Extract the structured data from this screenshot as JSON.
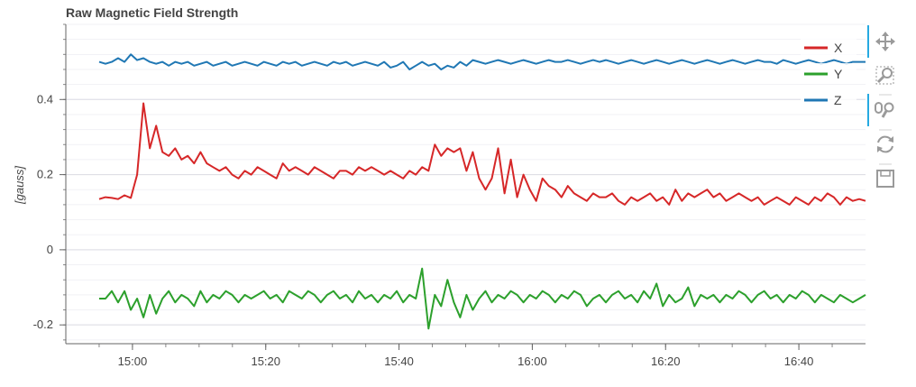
{
  "chart_data": {
    "type": "line",
    "title": "Raw Magnetic Field Strength",
    "xlabel": "",
    "ylabel": "[gauss]",
    "x_start": "14:55",
    "x_end": "16:50",
    "xlim": [
      "14:50",
      "16:50"
    ],
    "ylim": [
      -0.25,
      0.6
    ],
    "x_tick_labels": [
      "15:00",
      "15:20",
      "15:40",
      "16:00",
      "16:20",
      "16:40"
    ],
    "y_ticks": [
      -0.2,
      0,
      0.2,
      0.4
    ],
    "y_tick_labels": [
      "-0.2",
      "0",
      "0.2",
      "0.4"
    ],
    "grid": true,
    "legend_position": "top-right",
    "series": [
      {
        "name": "X",
        "color": "#d62728",
        "values": [
          0.135,
          0.14,
          0.138,
          0.135,
          0.145,
          0.138,
          0.2,
          0.39,
          0.27,
          0.33,
          0.26,
          0.25,
          0.27,
          0.24,
          0.25,
          0.23,
          0.26,
          0.23,
          0.22,
          0.21,
          0.22,
          0.2,
          0.19,
          0.21,
          0.2,
          0.22,
          0.21,
          0.2,
          0.19,
          0.23,
          0.21,
          0.22,
          0.21,
          0.2,
          0.22,
          0.21,
          0.2,
          0.19,
          0.21,
          0.21,
          0.2,
          0.22,
          0.21,
          0.22,
          0.21,
          0.2,
          0.21,
          0.2,
          0.19,
          0.21,
          0.2,
          0.22,
          0.21,
          0.28,
          0.25,
          0.27,
          0.26,
          0.27,
          0.21,
          0.26,
          0.19,
          0.16,
          0.19,
          0.27,
          0.15,
          0.24,
          0.14,
          0.2,
          0.16,
          0.13,
          0.19,
          0.17,
          0.16,
          0.14,
          0.17,
          0.15,
          0.14,
          0.13,
          0.15,
          0.14,
          0.14,
          0.15,
          0.13,
          0.12,
          0.14,
          0.13,
          0.14,
          0.15,
          0.13,
          0.14,
          0.12,
          0.16,
          0.13,
          0.15,
          0.14,
          0.15,
          0.16,
          0.14,
          0.15,
          0.13,
          0.14,
          0.15,
          0.14,
          0.13,
          0.14,
          0.12,
          0.13,
          0.14,
          0.13,
          0.12,
          0.14,
          0.13,
          0.12,
          0.14,
          0.13,
          0.15,
          0.14,
          0.12,
          0.14,
          0.13,
          0.135,
          0.13
        ]
      },
      {
        "name": "Y",
        "color": "#2ca02c",
        "values": [
          -0.13,
          -0.13,
          -0.11,
          -0.14,
          -0.11,
          -0.16,
          -0.13,
          -0.18,
          -0.12,
          -0.17,
          -0.13,
          -0.11,
          -0.14,
          -0.12,
          -0.13,
          -0.15,
          -0.11,
          -0.14,
          -0.12,
          -0.13,
          -0.11,
          -0.12,
          -0.14,
          -0.12,
          -0.13,
          -0.12,
          -0.11,
          -0.13,
          -0.12,
          -0.14,
          -0.11,
          -0.12,
          -0.13,
          -0.11,
          -0.12,
          -0.14,
          -0.12,
          -0.11,
          -0.13,
          -0.12,
          -0.14,
          -0.11,
          -0.13,
          -0.12,
          -0.14,
          -0.12,
          -0.13,
          -0.11,
          -0.14,
          -0.12,
          -0.13,
          -0.05,
          -0.21,
          -0.12,
          -0.15,
          -0.08,
          -0.14,
          -0.18,
          -0.12,
          -0.16,
          -0.13,
          -0.11,
          -0.14,
          -0.12,
          -0.13,
          -0.11,
          -0.12,
          -0.14,
          -0.12,
          -0.13,
          -0.11,
          -0.12,
          -0.14,
          -0.12,
          -0.13,
          -0.11,
          -0.12,
          -0.15,
          -0.13,
          -0.12,
          -0.14,
          -0.12,
          -0.11,
          -0.13,
          -0.12,
          -0.14,
          -0.11,
          -0.13,
          -0.09,
          -0.15,
          -0.12,
          -0.14,
          -0.13,
          -0.1,
          -0.15,
          -0.12,
          -0.13,
          -0.12,
          -0.14,
          -0.12,
          -0.13,
          -0.11,
          -0.12,
          -0.14,
          -0.12,
          -0.11,
          -0.13,
          -0.12,
          -0.14,
          -0.12,
          -0.13,
          -0.11,
          -0.12,
          -0.14,
          -0.12,
          -0.13,
          -0.14,
          -0.12,
          -0.13,
          -0.14,
          -0.13,
          -0.12
        ]
      },
      {
        "name": "Z",
        "color": "#1f77b4",
        "values": [
          0.5,
          0.495,
          0.5,
          0.51,
          0.5,
          0.52,
          0.505,
          0.51,
          0.5,
          0.495,
          0.5,
          0.49,
          0.5,
          0.495,
          0.5,
          0.49,
          0.495,
          0.5,
          0.49,
          0.495,
          0.5,
          0.49,
          0.495,
          0.5,
          0.495,
          0.49,
          0.5,
          0.495,
          0.49,
          0.5,
          0.495,
          0.5,
          0.49,
          0.495,
          0.5,
          0.495,
          0.49,
          0.5,
          0.495,
          0.5,
          0.49,
          0.495,
          0.5,
          0.495,
          0.49,
          0.5,
          0.485,
          0.49,
          0.5,
          0.48,
          0.49,
          0.5,
          0.49,
          0.495,
          0.48,
          0.49,
          0.485,
          0.5,
          0.49,
          0.505,
          0.5,
          0.495,
          0.5,
          0.505,
          0.5,
          0.495,
          0.5,
          0.505,
          0.5,
          0.495,
          0.5,
          0.505,
          0.5,
          0.5,
          0.505,
          0.5,
          0.495,
          0.5,
          0.505,
          0.5,
          0.505,
          0.5,
          0.495,
          0.5,
          0.505,
          0.5,
          0.495,
          0.5,
          0.505,
          0.5,
          0.495,
          0.5,
          0.505,
          0.5,
          0.495,
          0.5,
          0.505,
          0.5,
          0.495,
          0.5,
          0.505,
          0.5,
          0.495,
          0.5,
          0.505,
          0.5,
          0.5,
          0.495,
          0.505,
          0.5,
          0.495,
          0.5,
          0.505,
          0.5,
          0.495,
          0.5,
          0.505,
          0.5,
          0.495,
          0.5,
          0.5,
          0.5
        ]
      }
    ]
  },
  "toolbar": {
    "tools": [
      {
        "name": "pan",
        "icon": "pan-icon",
        "active": true
      },
      {
        "name": "box-zoom",
        "icon": "box-zoom-icon",
        "active": false
      },
      {
        "name": "wheel-zoom",
        "icon": "wheel-zoom-icon",
        "active": true
      },
      {
        "name": "reset",
        "icon": "reset-icon",
        "active": false
      },
      {
        "name": "save",
        "icon": "save-icon",
        "active": false
      }
    ]
  }
}
